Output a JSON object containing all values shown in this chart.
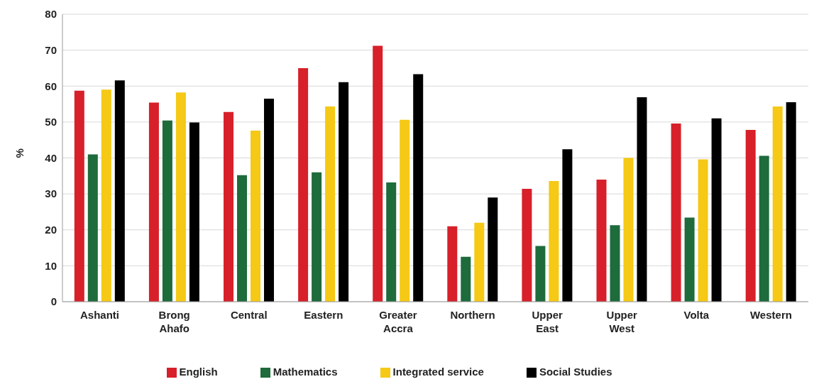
{
  "chart_data": {
    "type": "bar",
    "ylabel": "%",
    "categories": [
      "Ashanti",
      "Brong Ahafo",
      "Central",
      "Eastern",
      "Greater Accra",
      "Northern",
      "Upper East",
      "Upper West",
      "Volta",
      "Western"
    ],
    "series": [
      {
        "name": "English",
        "color": "#d7202a",
        "values": [
          58.7,
          55.4,
          52.8,
          65,
          71.2,
          21,
          31.4,
          34,
          49.6,
          47.8
        ]
      },
      {
        "name": "Mathematics",
        "color": "#1e6b3c",
        "values": [
          41,
          50.4,
          35.2,
          36,
          33.2,
          12.5,
          15.5,
          21.3,
          23.4,
          40.6
        ]
      },
      {
        "name": "Integrated service",
        "color": "#f5c915",
        "values": [
          59,
          58.2,
          47.6,
          54.3,
          50.6,
          22,
          33.6,
          40,
          39.6,
          54.3
        ]
      },
      {
        "name": "Social Studies",
        "color": "#000000",
        "values": [
          61.6,
          49.9,
          56.5,
          61.1,
          63.3,
          29,
          42.4,
          56.9,
          51,
          55.5
        ]
      }
    ],
    "ylim": [
      0,
      80
    ],
    "yticks": [
      0,
      10,
      20,
      30,
      40,
      50,
      60,
      70,
      80
    ],
    "grid": "y",
    "legend": "bottom"
  }
}
